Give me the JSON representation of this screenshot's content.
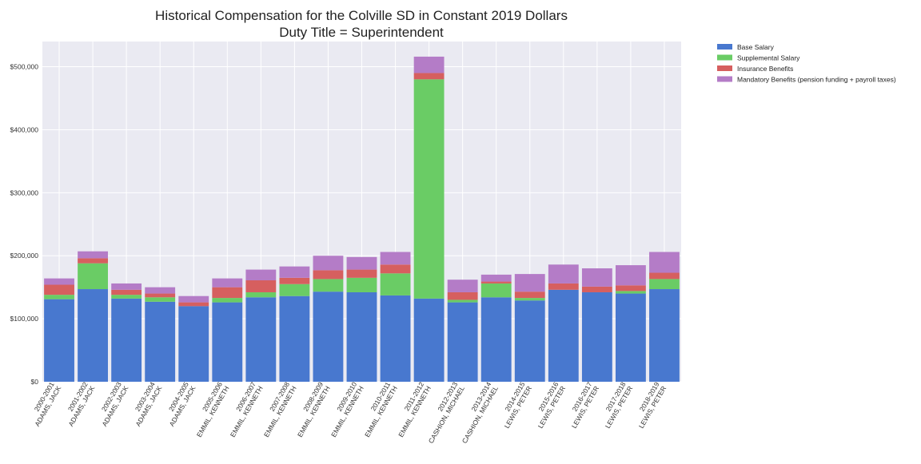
{
  "chart_data": {
    "type": "bar",
    "stacked": true,
    "title": "Historical Compensation for the Colville SD in Constant 2019 Dollars",
    "subtitle": "Duty Title = Superintendent",
    "xlabel": "",
    "ylabel": "",
    "ylim": [
      0,
      540000
    ],
    "yticks": [
      0,
      100000,
      200000,
      300000,
      400000,
      500000
    ],
    "ytick_labels": [
      "$0",
      "$100,000",
      "$200,000",
      "$300,000",
      "$400,000",
      "$500,000"
    ],
    "grid": true,
    "legend_position": "outside-top-right",
    "categories": [
      [
        "2000-2001",
        "ADAMS, JACK"
      ],
      [
        "2001-2002",
        "ADAMS, JACK"
      ],
      [
        "2002-2003",
        "ADAMS, JACK"
      ],
      [
        "2003-2004",
        "ADAMS, JACK"
      ],
      [
        "2004-2005",
        "ADAMS, JACK"
      ],
      [
        "2005-2006",
        "EMMIL, KENNETH"
      ],
      [
        "2006-2007",
        "EMMIL, KENNETH"
      ],
      [
        "2007-2008",
        "EMMIL, KENNETH"
      ],
      [
        "2008-2009",
        "EMMIL, KENNETH"
      ],
      [
        "2009-2010",
        "EMMIL, KENNETH"
      ],
      [
        "2010-2011",
        "EMMIL, KENNETH"
      ],
      [
        "2011-2012",
        "EMMIL, KENNETH"
      ],
      [
        "2012-2013",
        "CASHION, MICHAEL"
      ],
      [
        "2013-2014",
        "CASHION, MICHAEL"
      ],
      [
        "2014-2015",
        "LEWIS, PETER"
      ],
      [
        "2015-2016",
        "LEWIS, PETER"
      ],
      [
        "2016-2017",
        "LEWIS, PETER"
      ],
      [
        "2017-2018",
        "LEWIS, PETER"
      ],
      [
        "2018-2019",
        "LEWIS, PETER"
      ]
    ],
    "series": [
      {
        "name": "Base Salary",
        "color": "#4878cf",
        "values": [
          131000,
          147000,
          132000,
          127000,
          120000,
          126000,
          134000,
          136000,
          143000,
          142000,
          137000,
          132000,
          126000,
          134000,
          129000,
          146000,
          142000,
          140000,
          147000
        ]
      },
      {
        "name": "Supplemental Salary",
        "color": "#6acc65",
        "values": [
          7000,
          41000,
          6000,
          7000,
          0,
          7000,
          8000,
          19000,
          20000,
          23000,
          35000,
          348000,
          4000,
          22000,
          4000,
          0,
          0,
          4000,
          16000
        ]
      },
      {
        "name": "Insurance Benefits",
        "color": "#d65f5f",
        "values": [
          16000,
          8000,
          8000,
          6000,
          6000,
          17000,
          19000,
          10000,
          14000,
          13000,
          14000,
          10000,
          12000,
          3000,
          10000,
          10000,
          9000,
          9000,
          10000
        ]
      },
      {
        "name": "Mandatory Benefits (pension funding + payroll taxes)",
        "color": "#b47cc7",
        "values": [
          10000,
          11000,
          10000,
          10000,
          10000,
          14000,
          17000,
          18000,
          23000,
          20000,
          20000,
          26000,
          20000,
          11000,
          28000,
          30000,
          29000,
          32000,
          33000
        ]
      }
    ]
  }
}
